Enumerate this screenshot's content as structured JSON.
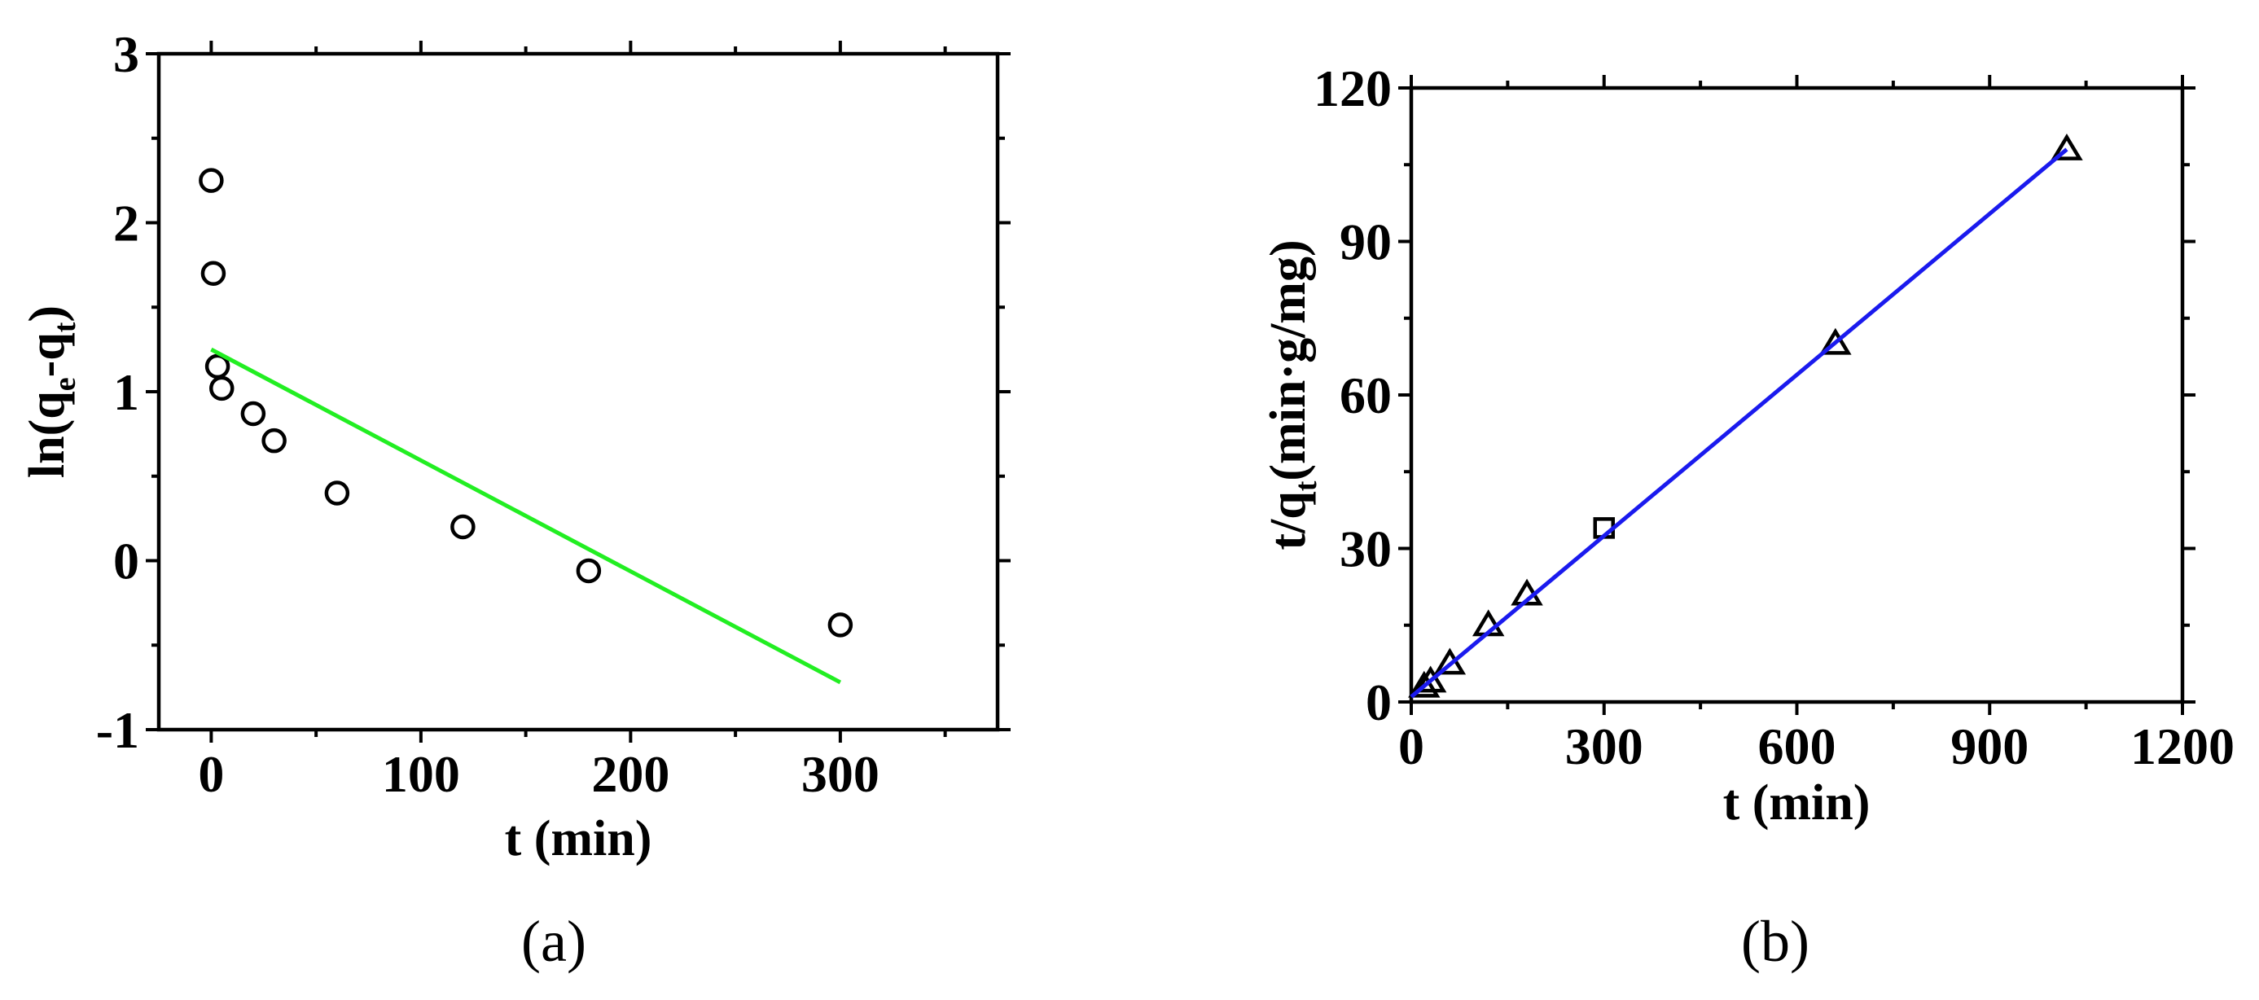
{
  "chart_data": [
    {
      "panel_label": "(a)",
      "type": "scatter",
      "xlabel": "t (min)",
      "ylabel": {
        "prefix": "ln(q",
        "sub1": "e",
        "mid": "-q",
        "sub2": "t",
        "suffix": ")"
      },
      "xlim": [
        -25,
        375
      ],
      "ylim": [
        -1,
        3
      ],
      "x_ticks": [
        0,
        100,
        200,
        300
      ],
      "x_tick_labels": [
        "0",
        "100",
        "200",
        "300"
      ],
      "x_minor_ticks": [
        50,
        150,
        250,
        350
      ],
      "y_ticks": [
        -1,
        0,
        1,
        2,
        3
      ],
      "y_tick_labels": [
        "-1",
        "0",
        "1",
        "2",
        "3"
      ],
      "y_minor_ticks": [
        -0.5,
        0.5,
        1.5,
        2.5
      ],
      "grid": false,
      "series": [
        {
          "marker": "circle",
          "color": "#000000",
          "points": [
            [
              0,
              2.25
            ],
            [
              1,
              1.7
            ],
            [
              3,
              1.15
            ],
            [
              5,
              1.02
            ],
            [
              20,
              0.87
            ],
            [
              30,
              0.71
            ],
            [
              60,
              0.4
            ],
            [
              120,
              0.2
            ],
            [
              180,
              -0.06
            ],
            [
              300,
              -0.38
            ]
          ]
        },
        {
          "style": "line",
          "color": "#22ee22",
          "points": [
            [
              0,
              1.25
            ],
            [
              300,
              -0.72
            ]
          ]
        }
      ]
    },
    {
      "panel_label": "(b)",
      "type": "scatter",
      "xlabel": "t (min)",
      "ylabel": {
        "prefix": "t/q",
        "sub1": "t",
        "suffix": "(min·g/mg)"
      },
      "xlim": [
        0,
        1200
      ],
      "ylim": [
        0,
        120
      ],
      "x_ticks": [
        0,
        300,
        600,
        900,
        1200
      ],
      "x_tick_labels": [
        "0",
        "300",
        "600",
        "900",
        "1200"
      ],
      "x_minor_ticks": [
        150,
        450,
        750,
        1050
      ],
      "y_ticks": [
        0,
        30,
        60,
        90,
        120
      ],
      "y_tick_labels": [
        "0",
        "30",
        "60",
        "90",
        "120"
      ],
      "y_minor_ticks": [
        15,
        45,
        75,
        105
      ],
      "grid": false,
      "series": [
        {
          "marker": "triangle",
          "color": "#000000",
          "points": [
            [
              20,
              3
            ],
            [
              30,
              4
            ],
            [
              60,
              7.5
            ],
            [
              120,
              15
            ],
            [
              180,
              21
            ],
            [
              660,
              70
            ],
            [
              1020,
              108
            ]
          ]
        },
        {
          "marker": "square",
          "color": "#000000",
          "points": [
            [
              300,
              34
            ]
          ]
        },
        {
          "style": "line",
          "color": "#1a1aee",
          "points": [
            [
              0,
              1
            ],
            [
              1020,
              108
            ]
          ]
        }
      ]
    }
  ]
}
